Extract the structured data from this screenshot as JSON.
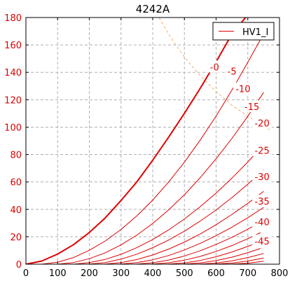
{
  "chart_data": {
    "type": "line",
    "title": "4242A",
    "xlabel": "",
    "ylabel": "",
    "xlim": [
      0,
      800
    ],
    "ylim": [
      0,
      180
    ],
    "xticks": [
      0,
      100,
      200,
      300,
      400,
      500,
      600,
      700,
      800
    ],
    "yticks": [
      0,
      20,
      40,
      60,
      80,
      100,
      120,
      140,
      160,
      180
    ],
    "grid": true,
    "legend": {
      "position": "top-right",
      "entries": [
        "HV1_I"
      ]
    },
    "colors": {
      "curves": "#dd0000",
      "label_text": "#dd0000",
      "dissipation": "#f0b070",
      "grid": "#b0b0b0",
      "axis": "#000000"
    },
    "series": [
      {
        "name": "HV1_I",
        "label": "-0",
        "x": [
          0,
          50,
          100,
          150,
          200,
          250,
          300,
          350,
          400,
          450,
          500,
          550,
          600,
          650,
          700
        ],
        "y": [
          0,
          2.3,
          7.4,
          14.2,
          23.1,
          33.7,
          46.5,
          60.1,
          75.9,
          92.6,
          110.1,
          128.4,
          147.7,
          168.0,
          182.0
        ]
      },
      {
        "label": "-5",
        "x": [
          50,
          100,
          150,
          200,
          250,
          300,
          350,
          400,
          450,
          500,
          550,
          600,
          650,
          700,
          740
        ],
        "y": [
          0,
          1.5,
          4.8,
          10.1,
          16.9,
          25.3,
          35.3,
          46.8,
          59.9,
          74.5,
          90.6,
          108.1,
          127.0,
          147.4,
          164.0
        ]
      },
      {
        "label": "-10",
        "x": [
          100,
          150,
          200,
          250,
          300,
          350,
          400,
          450,
          500,
          550,
          600,
          650,
          700,
          750
        ],
        "y": [
          0,
          1.2,
          4.0,
          8.3,
          14.1,
          21.2,
          29.7,
          39.6,
          50.7,
          63.2,
          76.9,
          91.8,
          108.0,
          125.4
        ]
      },
      {
        "label": "-15",
        "x": [
          150,
          200,
          250,
          300,
          350,
          400,
          450,
          500,
          550,
          600,
          650,
          700,
          750
        ],
        "y": [
          0,
          1.1,
          3.5,
          7.2,
          12.1,
          18.0,
          25.0,
          33.0,
          42.0,
          51.9,
          62.8,
          74.6,
          87.2
        ]
      },
      {
        "label": "-20",
        "x": [
          195,
          250,
          300,
          350,
          400,
          450,
          500,
          550,
          600,
          650,
          700,
          750
        ],
        "y": [
          0,
          1.2,
          3.7,
          7.3,
          12.0,
          17.6,
          24.1,
          31.5,
          39.6,
          48.6,
          58.4,
          68.8
        ]
      },
      {
        "label": "-25",
        "x": [
          245,
          300,
          350,
          400,
          450,
          500,
          550,
          600,
          650,
          700,
          750
        ],
        "y": [
          0,
          1.2,
          3.4,
          6.7,
          11.0,
          16.1,
          22.1,
          28.8,
          36.3,
          44.4,
          53.2
        ]
      },
      {
        "label": "-30",
        "x": [
          295,
          350,
          400,
          450,
          500,
          550,
          600,
          650,
          700,
          750
        ],
        "y": [
          0,
          1.1,
          3.2,
          6.3,
          10.4,
          15.2,
          20.8,
          27.0,
          33.9,
          41.4
        ]
      },
      {
        "label": "-35",
        "x": [
          345,
          400,
          450,
          500,
          550,
          600,
          650,
          700,
          750
        ],
        "y": [
          0,
          1.0,
          3.0,
          6.0,
          9.8,
          14.4,
          19.6,
          25.5,
          31.9
        ]
      },
      {
        "label": "-40",
        "x": [
          395,
          450,
          500,
          550,
          600,
          650,
          700,
          740
        ],
        "y": [
          0,
          1.0,
          2.9,
          5.7,
          9.3,
          13.6,
          18.6,
          23.0
        ]
      },
      {
        "label": "-45",
        "x": [
          445,
          500,
          550,
          600,
          650,
          700,
          740
        ],
        "y": [
          0,
          0.9,
          2.7,
          5.4,
          8.9,
          13.0,
          16.5
        ]
      },
      {
        "x": [
          495,
          550,
          600,
          650,
          700,
          740
        ],
        "y": [
          0,
          0.9,
          2.6,
          5.1,
          8.4,
          11.5
        ]
      },
      {
        "x": [
          545,
          600,
          650,
          700,
          750
        ],
        "y": [
          0,
          0.8,
          2.4,
          4.8,
          7.8
        ]
      },
      {
        "x": [
          595,
          650,
          700,
          750
        ],
        "y": [
          0,
          0.8,
          2.3,
          4.5
        ]
      },
      {
        "x": [
          645,
          700,
          750
        ],
        "y": [
          0,
          0.7,
          2.2
        ]
      }
    ],
    "dissipation_curve": {
      "x": [
        420,
        450,
        500,
        550,
        600,
        650,
        700,
        750,
        770
      ],
      "y": [
        180,
        168,
        151,
        137.5,
        126,
        116,
        108,
        100.8,
        98
      ]
    },
    "curve_labels": [
      {
        "text": "-0",
        "x": 595,
        "y": 144
      },
      {
        "text": "-5",
        "x": 650,
        "y": 141
      },
      {
        "text": "-10",
        "x": 685,
        "y": 128
      },
      {
        "text": "-15",
        "x": 713,
        "y": 115
      },
      {
        "text": "-20",
        "x": 745,
        "y": 103
      },
      {
        "text": "-25",
        "x": 745,
        "y": 83
      },
      {
        "text": "-30",
        "x": 745,
        "y": 64
      },
      {
        "text": "-35",
        "x": 745,
        "y": 46
      },
      {
        "text": "-40",
        "x": 745,
        "y": 31
      },
      {
        "text": "-45",
        "x": 745,
        "y": 17
      }
    ]
  }
}
